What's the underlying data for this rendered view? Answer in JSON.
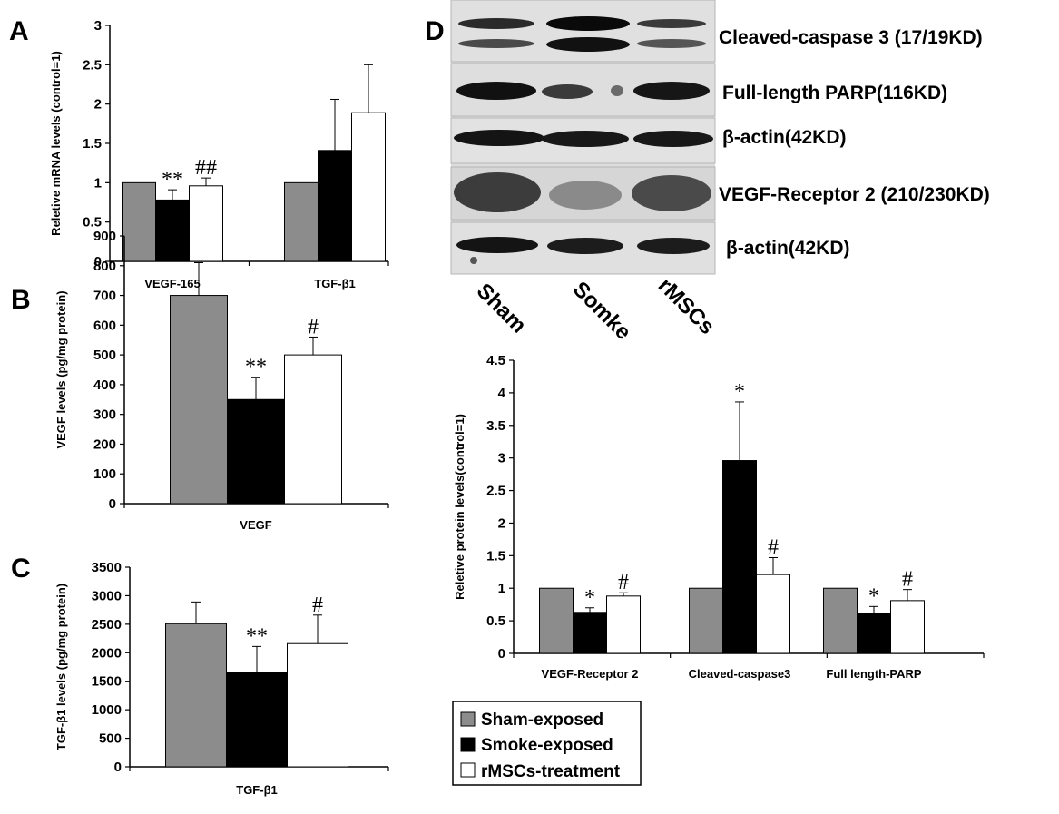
{
  "panels": {
    "A": "A",
    "B": "B",
    "C": "C",
    "D": "D"
  },
  "colors": {
    "sham": "#8c8c8c",
    "smoke": "#000000",
    "rmsc": "#ffffff"
  },
  "blot": {
    "band_labels": [
      "Cleaved-caspase 3 (17/19KD)",
      "Full-length PARP(116KD)",
      "β-actin(42KD)",
      "VEGF-Receptor 2 (210/230KD)",
      "β-actin(42KD)"
    ],
    "lanes": [
      "Sham",
      "Somke",
      "rMSCs"
    ]
  },
  "legend": [
    "Sham-exposed",
    "Smoke-exposed",
    "rMSCs-treatment"
  ],
  "chart_data": [
    {
      "id": "A",
      "type": "bar",
      "ylabel": "Reletive mRNA levels (control=1)",
      "ylim": [
        0,
        3
      ],
      "yticks": [
        "0",
        "0.5",
        "1",
        "1.5",
        "2",
        "2.5",
        "3"
      ],
      "categories": [
        "VEGF-165",
        "TGF-β1"
      ],
      "series": [
        {
          "values": [
            1.0,
            1.0
          ],
          "errors": [
            0,
            0
          ],
          "sig": [
            "",
            ""
          ]
        },
        {
          "values": [
            0.78,
            1.41
          ],
          "errors": [
            0.13,
            0.65
          ],
          "sig": [
            "**",
            ""
          ]
        },
        {
          "values": [
            0.96,
            1.89
          ],
          "errors": [
            0.1,
            0.61
          ],
          "sig": [
            "##",
            ""
          ]
        }
      ]
    },
    {
      "id": "B",
      "type": "bar",
      "ylabel": "VEGF levels  (pg/mg protein)",
      "ylim": [
        0,
        900
      ],
      "yticks": [
        "0",
        "100",
        "200",
        "300",
        "400",
        "500",
        "600",
        "700",
        "800",
        "900"
      ],
      "categories": [
        "VEGF"
      ],
      "series": [
        {
          "values": [
            700
          ],
          "errors": [
            110
          ],
          "sig": [
            ""
          ]
        },
        {
          "values": [
            350
          ],
          "errors": [
            75
          ],
          "sig": [
            "**"
          ]
        },
        {
          "values": [
            500
          ],
          "errors": [
            60
          ],
          "sig": [
            "#"
          ]
        }
      ]
    },
    {
      "id": "C",
      "type": "bar",
      "ylabel": "TGF-β1 levels (pg/mg protein)",
      "ylim": [
        0,
        3500
      ],
      "yticks": [
        "0",
        "500",
        "1000",
        "1500",
        "2000",
        "2500",
        "3000",
        "3500"
      ],
      "categories": [
        "TGF-β1"
      ],
      "series": [
        {
          "values": [
            2510
          ],
          "errors": [
            380
          ],
          "sig": [
            ""
          ]
        },
        {
          "values": [
            1660
          ],
          "errors": [
            450
          ],
          "sig": [
            "**"
          ]
        },
        {
          "values": [
            2160
          ],
          "errors": [
            500
          ],
          "sig": [
            "#"
          ]
        }
      ]
    },
    {
      "id": "D",
      "type": "bar",
      "ylabel": "Reletive protein levels(control=1)",
      "ylim": [
        0,
        4.5
      ],
      "yticks": [
        "0",
        "0.5",
        "1",
        "1.5",
        "2",
        "2.5",
        "3",
        "3.5",
        "4",
        "4.5"
      ],
      "categories": [
        "VEGF-Receptor 2",
        "Cleaved-caspase3",
        "Full length-PARP"
      ],
      "series": [
        {
          "values": [
            1.0,
            1.0,
            1.0
          ],
          "errors": [
            0,
            0,
            0
          ],
          "sig": [
            "",
            "",
            ""
          ]
        },
        {
          "values": [
            0.63,
            2.96,
            0.62
          ],
          "errors": [
            0.07,
            0.9,
            0.1
          ],
          "sig": [
            "*",
            "*",
            "*"
          ]
        },
        {
          "values": [
            0.88,
            1.21,
            0.81
          ],
          "errors": [
            0.05,
            0.26,
            0.17
          ],
          "sig": [
            "#",
            "#",
            "#"
          ]
        }
      ]
    }
  ]
}
